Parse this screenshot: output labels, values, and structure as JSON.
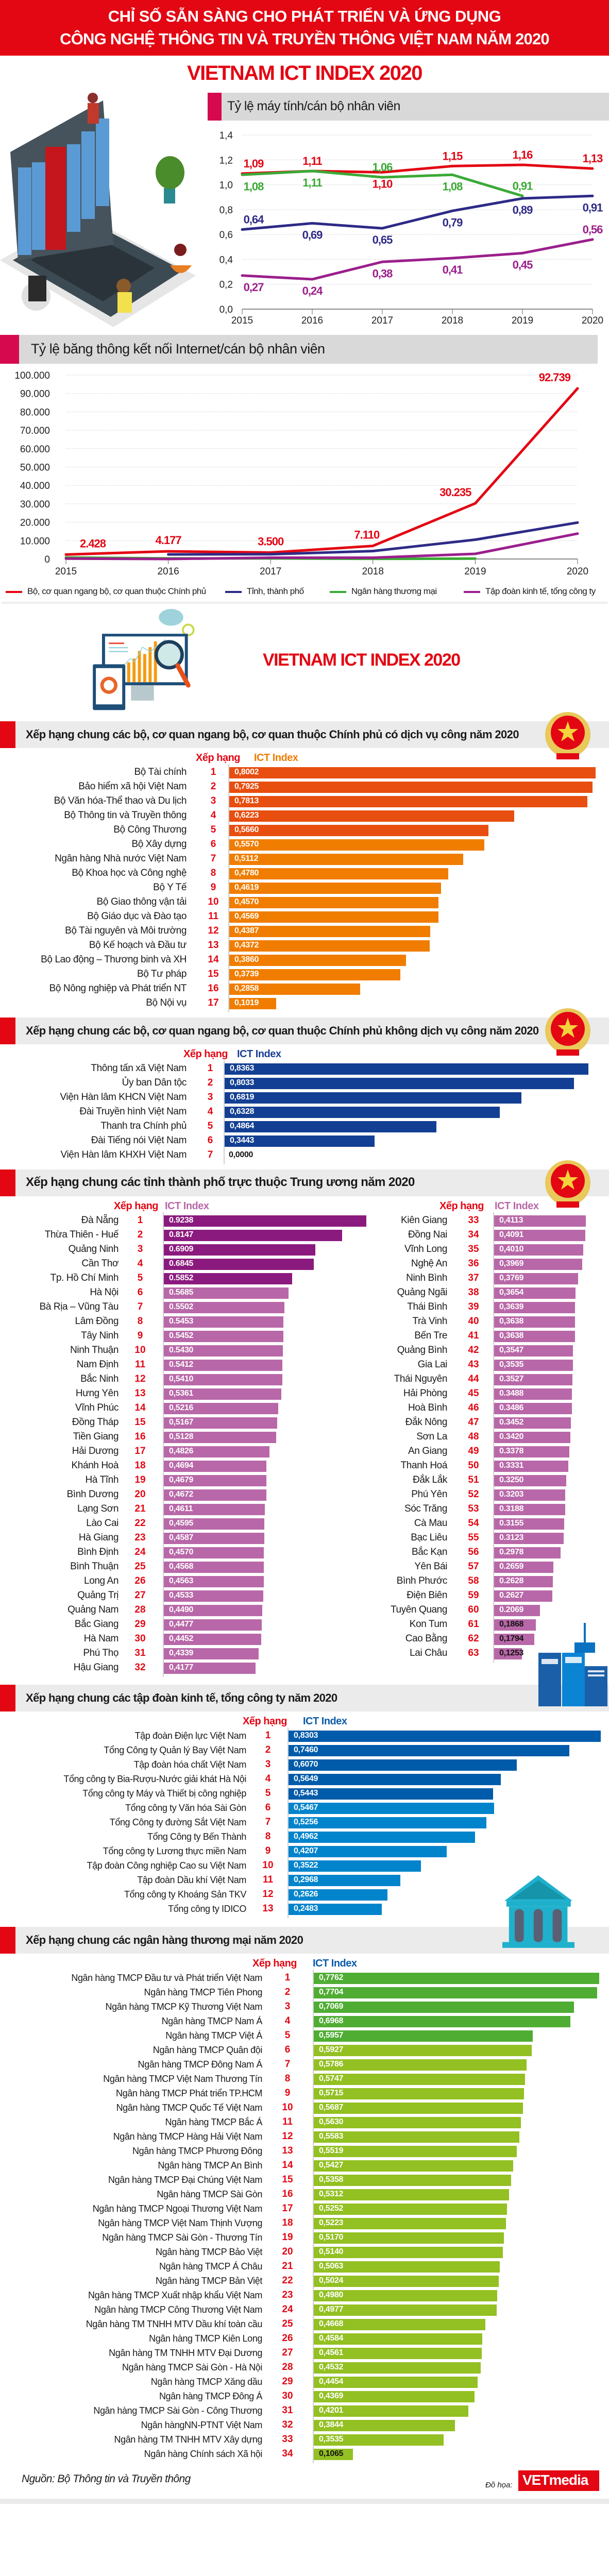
{
  "header": {
    "title_line1": "CHỈ SỐ SẴN SÀNG CHO PHÁT TRIỂN VÀ ỨNG DỤNG",
    "title_line2": "CÔNG NGHỆ THÔNG TIN VÀ TRUYỀN THÔNG VIỆT NAM NĂM 2020",
    "subtitle": "VIETNAM ICT INDEX 2020",
    "subtitle2": "VIETNAM ICT INDEX 2020"
  },
  "colors": {
    "brand_red": "#e30613",
    "ministries": "#e30613",
    "provinces": "#2e2a86",
    "banks": "#3aaa35",
    "corporations": "#9b1f8c"
  },
  "legend": [
    {
      "label": "Bộ, cơ quan ngang bộ, cơ quan thuộc Chính phủ",
      "color": "#e30613"
    },
    {
      "label": "Tỉnh, thành phố",
      "color": "#2e2a86"
    },
    {
      "label": "Ngân hàng thương mại",
      "color": "#3aaa35"
    },
    {
      "label": "Tập đoàn kinh tế, tổng công ty",
      "color": "#9b1f8c"
    }
  ],
  "chart_data": [
    {
      "type": "line",
      "title": "Tỷ lệ máy tính/cán bộ nhân viên",
      "x": [
        "2015",
        "2016",
        "2017",
        "2018",
        "2019",
        "2020"
      ],
      "ylim": [
        0,
        1.4
      ],
      "yticks": [
        "0,0",
        "0,2",
        "0,4",
        "0,6",
        "0,8",
        "1,0",
        "1,2",
        "1,4"
      ],
      "grid": true,
      "series": [
        {
          "color": "#e30613",
          "values": [
            1.09,
            1.11,
            1.1,
            1.15,
            1.16,
            1.13
          ],
          "labels": [
            "1,09",
            "1,11",
            "1,10",
            "1,15",
            "1,16",
            "1,13"
          ]
        },
        {
          "color": "#3aaa35",
          "values": [
            1.08,
            1.11,
            1.06,
            1.08,
            0.91,
            null
          ],
          "labels": [
            "1,08",
            "1,11",
            "1,06",
            "1,08",
            "0,91",
            ""
          ]
        },
        {
          "color": "#2e2a86",
          "values": [
            0.64,
            0.69,
            0.65,
            0.79,
            0.89,
            0.91
          ],
          "labels": [
            "0,64",
            "0,69",
            "0,65",
            "0,79",
            "0,89",
            "0,91"
          ]
        },
        {
          "color": "#9b1f8c",
          "values": [
            0.27,
            0.24,
            0.38,
            0.41,
            0.45,
            0.56
          ],
          "labels": [
            "0,27",
            "0,24",
            "0,38",
            "0,41",
            "0,45",
            "0,56"
          ]
        }
      ]
    },
    {
      "type": "line",
      "title": "Tỷ lệ băng thông kết nối Internet/cán bộ nhân viên",
      "x": [
        "2015",
        "2016",
        "2017",
        "2018",
        "2019",
        "2020"
      ],
      "ylim": [
        0,
        100000
      ],
      "yticks": [
        "0",
        "10.000",
        "20.000",
        "30.000",
        "40.000",
        "50.000",
        "60.000",
        "70.000",
        "80.000",
        "90.000",
        "100.000"
      ],
      "grid": true,
      "legend": "bottom",
      "series": [
        {
          "name": "Bộ, cơ quan ngang bộ, cơ quan thuộc Chính phủ",
          "color": "#e30613",
          "values": [
            2428,
            4177,
            3500,
            7110,
            30235,
            92739
          ],
          "labels": [
            "2.428",
            "4.177",
            "3.500",
            "7.110",
            "30.235",
            "92.739"
          ]
        },
        {
          "name": "Tỉnh, thành phố",
          "color": "#2e2a86",
          "values": [
            null,
            2500,
            2600,
            4300,
            10500,
            19800
          ]
        },
        {
          "name": "Ngân hàng thương mại",
          "color": "#3aaa35",
          "values": [
            800,
            300,
            300,
            100,
            200,
            null
          ]
        },
        {
          "name": "Tập đoàn kinh tế, tổng công ty",
          "color": "#9b1f8c",
          "values": [
            200,
            0,
            700,
            700,
            2800,
            13800
          ]
        }
      ]
    }
  ],
  "ministries_public": {
    "title": "Xếp hạng chung các bộ, cơ quan ngang bộ, cơ quan thuộc Chính phủ có dịch vụ công năm 2020",
    "col_rank": "Xếp hạng",
    "col_index": "ICT Index",
    "rows": [
      {
        "name": "Bộ Tài chính",
        "rank": "1",
        "value": "0,8002"
      },
      {
        "name": "Bảo hiểm xã hội Việt Nam",
        "rank": "2",
        "value": "0,7925"
      },
      {
        "name": "Bộ Văn hóa-Thể thao và Du lịch",
        "rank": "3",
        "value": "0,7813"
      },
      {
        "name": "Bộ Thông tin và Truyền thông",
        "rank": "4",
        "value": "0,6223"
      },
      {
        "name": "Bộ Công Thương",
        "rank": "5",
        "value": "0,5660"
      },
      {
        "name": "Bộ Xây dựng",
        "rank": "6",
        "value": "0,5570"
      },
      {
        "name": "Ngân hàng Nhà nước Việt Nam",
        "rank": "7",
        "value": "0,5112"
      },
      {
        "name": "Bộ Khoa học và Công nghệ",
        "rank": "8",
        "value": "0,4780"
      },
      {
        "name": "Bộ Y Tế",
        "rank": "9",
        "value": "0,4619"
      },
      {
        "name": "Bộ Giao thông vận tải",
        "rank": "10",
        "value": "0,4570"
      },
      {
        "name": "Bộ Giáo dục và Đào tạo",
        "rank": "11",
        "value": "0,4569"
      },
      {
        "name": "Bộ Tài nguyên và Môi trường",
        "rank": "12",
        "value": "0,4387"
      },
      {
        "name": "Bộ Kế hoạch và Đầu tư",
        "rank": "13",
        "value": "0,4372"
      },
      {
        "name": "Bộ Lao động – Thương binh và XH",
        "rank": "14",
        "value": "0,3860"
      },
      {
        "name": "Bộ Tư pháp",
        "rank": "15",
        "value": "0,3739"
      },
      {
        "name": "Bộ Nông nghiệp và Phát triển NT",
        "rank": "16",
        "value": "0,2858"
      },
      {
        "name": "Bộ Nội vụ",
        "rank": "17",
        "value": "0,1019"
      }
    ]
  },
  "ministries_nonpublic": {
    "title": "Xếp hạng chung các bộ, cơ quan ngang bộ, cơ quan thuộc Chính phủ không dịch vụ công năm 2020",
    "col_rank": "Xếp hạng",
    "col_index": "ICT Index",
    "rows": [
      {
        "name": "Thông tấn xã Việt Nam",
        "rank": "1",
        "value": "0,8363"
      },
      {
        "name": "Ủy ban Dân tộc",
        "rank": "2",
        "value": "0,8033"
      },
      {
        "name": "Viện Hàn lâm KHCN Việt Nam",
        "rank": "3",
        "value": "0,6819"
      },
      {
        "name": "Đài Truyền hình Việt Nam",
        "rank": "4",
        "value": "0,6328"
      },
      {
        "name": "Thanh tra Chính phủ",
        "rank": "5",
        "value": "0,4864"
      },
      {
        "name": "Đài Tiếng nói Việt Nam",
        "rank": "6",
        "value": "0,3443"
      },
      {
        "name": "Viện Hàn lâm KHXH Việt Nam",
        "rank": "7",
        "value": "0,0000"
      }
    ]
  },
  "provinces": {
    "title": "Xếp hạng chung các  tỉnh thành phố trực thuộc Trung ương năm 2020",
    "col_rank": "Xếp hạng",
    "col_index": "ICT Index",
    "rows": [
      {
        "name": "Đà Nẵng",
        "rank": "1",
        "value": "0.9238"
      },
      {
        "name": "Thừa Thiên - Huế",
        "rank": "2",
        "value": "0.8147"
      },
      {
        "name": "Quảng Ninh",
        "rank": "3",
        "value": "0.6909"
      },
      {
        "name": "Cần Thơ",
        "rank": "4",
        "value": "0.6845"
      },
      {
        "name": "Tp. Hồ Chí Minh",
        "rank": "5",
        "value": "0.5852"
      },
      {
        "name": "Hà Nội",
        "rank": "6",
        "value": "0.5685"
      },
      {
        "name": "Bà Rịa – Vũng Tàu",
        "rank": "7",
        "value": "0.5502"
      },
      {
        "name": "Lâm Đồng",
        "rank": "8",
        "value": "0.5453"
      },
      {
        "name": "Tây Ninh",
        "rank": "9",
        "value": "0.5452"
      },
      {
        "name": "Ninh Thuận",
        "rank": "10",
        "value": "0.5430"
      },
      {
        "name": "Nam Định",
        "rank": "11",
        "value": "0.5412"
      },
      {
        "name": "Bắc Ninh",
        "rank": "12",
        "value": "0,5410"
      },
      {
        "name": "Hưng Yên",
        "rank": "13",
        "value": "0,5361"
      },
      {
        "name": "Vĩnh Phúc",
        "rank": "14",
        "value": "0,5216"
      },
      {
        "name": "Đồng Tháp",
        "rank": "15",
        "value": "0,5167"
      },
      {
        "name": "Tiền Giang",
        "rank": "16",
        "value": "0,5128"
      },
      {
        "name": "Hải Dương",
        "rank": "17",
        "value": "0,4826"
      },
      {
        "name": "Khánh Hoà",
        "rank": "18",
        "value": "0,4694"
      },
      {
        "name": "Hà Tĩnh",
        "rank": "19",
        "value": "0,4679"
      },
      {
        "name": "Bình Dương",
        "rank": "20",
        "value": "0,4672"
      },
      {
        "name": "Lạng Sơn",
        "rank": "21",
        "value": "0,4611"
      },
      {
        "name": "Lào Cai",
        "rank": "22",
        "value": "0,4595"
      },
      {
        "name": "Hà Giang",
        "rank": "23",
        "value": "0,4587"
      },
      {
        "name": "Bình Định",
        "rank": "24",
        "value": "0,4570"
      },
      {
        "name": "Bình Thuận",
        "rank": "25",
        "value": "0,4568"
      },
      {
        "name": "Long An",
        "rank": "26",
        "value": "0,4563"
      },
      {
        "name": "Quảng Trị",
        "rank": "27",
        "value": "0,4533"
      },
      {
        "name": "Quảng Nam",
        "rank": "28",
        "value": "0,4490"
      },
      {
        "name": "Bắc Giang",
        "rank": "29",
        "value": "0,4477"
      },
      {
        "name": "Hà Nam",
        "rank": "30",
        "value": "0,4452"
      },
      {
        "name": "Phú Thọ",
        "rank": "31",
        "value": "0,4339"
      },
      {
        "name": "Hậu Giang",
        "rank": "32",
        "value": "0,4177"
      },
      {
        "name": "Kiên Giang",
        "rank": "33",
        "value": "0,4113"
      },
      {
        "name": "Đồng Nai",
        "rank": "34",
        "value": "0,4091"
      },
      {
        "name": "Vĩnh Long",
        "rank": "35",
        "value": "0,4010"
      },
      {
        "name": "Nghệ An",
        "rank": "36",
        "value": "0,3969"
      },
      {
        "name": "Ninh Bình",
        "rank": "37",
        "value": "0,3769"
      },
      {
        "name": "Quảng Ngãi",
        "rank": "38",
        "value": "0,3654"
      },
      {
        "name": "Thái Bình",
        "rank": "39",
        "value": "0,3639"
      },
      {
        "name": "Trà Vinh",
        "rank": "40",
        "value": "0,3638"
      },
      {
        "name": "Bến Tre",
        "rank": "41",
        "value": "0,3638"
      },
      {
        "name": "Quảng Bình",
        "rank": "42",
        "value": "0,3547"
      },
      {
        "name": "Gia Lai",
        "rank": "43",
        "value": "0,3535"
      },
      {
        "name": "Thái Nguyên",
        "rank": "44",
        "value": "0.3527"
      },
      {
        "name": "Hải Phòng",
        "rank": "45",
        "value": "0.3488"
      },
      {
        "name": "Hoà Bình",
        "rank": "46",
        "value": "0.3486"
      },
      {
        "name": "Đắk Nông",
        "rank": "47",
        "value": "0.3452"
      },
      {
        "name": "Sơn La",
        "rank": "48",
        "value": "0.3420"
      },
      {
        "name": "An Giang",
        "rank": "49",
        "value": "0.3378"
      },
      {
        "name": "Thanh Hoá",
        "rank": "50",
        "value": "0.3331"
      },
      {
        "name": "Đắk Lắk",
        "rank": "51",
        "value": "0.3250"
      },
      {
        "name": "Phú Yên",
        "rank": "52",
        "value": "0.3203"
      },
      {
        "name": "Sóc Trăng",
        "rank": "53",
        "value": "0.3188"
      },
      {
        "name": "Cà Mau",
        "rank": "54",
        "value": "0.3155"
      },
      {
        "name": "Bạc Liêu",
        "rank": "55",
        "value": "0.3123"
      },
      {
        "name": "Bắc Kạn",
        "rank": "56",
        "value": "0.2978"
      },
      {
        "name": "Yên Bái",
        "rank": "57",
        "value": "0.2659"
      },
      {
        "name": "Bình Phước",
        "rank": "58",
        "value": "0.2628"
      },
      {
        "name": "Điện Biên",
        "rank": "59",
        "value": "0.2627"
      },
      {
        "name": "Tuyên Quang",
        "rank": "60",
        "value": "0.2069"
      },
      {
        "name": "Kon Tum",
        "rank": "61",
        "value": "0,1868"
      },
      {
        "name": "Cao Bằng",
        "rank": "62",
        "value": "0,1794"
      },
      {
        "name": "Lai Châu",
        "rank": "63",
        "value": "0,1253"
      }
    ]
  },
  "corporations": {
    "title": "Xếp hạng chung các  tập đoàn kinh tế, tổng công ty năm 2020",
    "col_rank": "Xếp hạng",
    "col_index": "ICT Index",
    "rows": [
      {
        "name": "Tập đoàn Điện lực Việt Nam",
        "rank": "1",
        "value": "0,8303"
      },
      {
        "name": "Tổng Công ty Quản lý Bay Việt Nam",
        "rank": "2",
        "value": "0,7460"
      },
      {
        "name": "Tập đoàn hóa chất Việt Nam",
        "rank": "3",
        "value": "0,6070"
      },
      {
        "name": "Tổng công ty Bia-Rượu-Nước giải khát Hà Nội",
        "rank": "4",
        "value": "0,5649"
      },
      {
        "name": "Tổng công ty Máy và Thiết bị công nghiệp",
        "rank": "5",
        "value": "0,5443"
      },
      {
        "name": "Tổng công ty Văn hóa Sài Gòn",
        "rank": "6",
        "value": "0,5467"
      },
      {
        "name": "Tổng Công ty đường Sắt Việt Nam",
        "rank": "7",
        "value": "0,5256"
      },
      {
        "name": "Tổng Công ty Bến Thành",
        "rank": "8",
        "value": "0,4962"
      },
      {
        "name": "Tổng công ty Lương thực miền Nam",
        "rank": "9",
        "value": "0,4207"
      },
      {
        "name": "Tập đoàn Công nghiệp Cao su Việt Nam",
        "rank": "10",
        "value": "0,3522"
      },
      {
        "name": "Tập đoàn Dầu khí Việt Nam",
        "rank": "11",
        "value": "0,2968"
      },
      {
        "name": "Tổng công ty Khoáng Sản TKV",
        "rank": "12",
        "value": "0,2626"
      },
      {
        "name": "Tổng công ty IDICO",
        "rank": "13",
        "value": "0,2483"
      }
    ]
  },
  "banks": {
    "title": "Xếp hạng chung các ngân hàng thương mại năm 2020",
    "col_rank": "Xếp hạng",
    "col_index": "ICT Index",
    "rows": [
      {
        "name": "Ngân hàng TMCP Đầu tư và Phát triển Việt Nam",
        "rank": "1",
        "value": "0,7762"
      },
      {
        "name": "Ngân hàng TMCP Tiên Phong",
        "rank": "2",
        "value": "0,7704"
      },
      {
        "name": "Ngân hàng TMCP Kỹ Thương Việt Nam",
        "rank": "3",
        "value": "0,7069"
      },
      {
        "name": "Ngân hàng TMCP Nam Á",
        "rank": "4",
        "value": "0,6968"
      },
      {
        "name": "Ngân hàng TMCP Việt Á",
        "rank": "5",
        "value": "0,5957"
      },
      {
        "name": "Ngân hàng TMCP Quân đội",
        "rank": "6",
        "value": "0,5927"
      },
      {
        "name": "Ngân hàng TMCP Đông Nam Á",
        "rank": "7",
        "value": "0,5786"
      },
      {
        "name": "Ngân hàng TMCP Việt Nam Thương Tín",
        "rank": "8",
        "value": "0,5747"
      },
      {
        "name": "Ngân hàng TMCP Phát triển TP.HCM",
        "rank": "9",
        "value": "0,5715"
      },
      {
        "name": "Ngân hàng TMCP Quốc Tế Việt Nam",
        "rank": "10",
        "value": "0,5687"
      },
      {
        "name": "Ngân hàng TMCP Bắc Á",
        "rank": "11",
        "value": "0,5630"
      },
      {
        "name": "Ngân hàng TMCP Hàng Hải Việt Nam",
        "rank": "12",
        "value": "0,5583"
      },
      {
        "name": "Ngân hàng TMCP Phương Đông",
        "rank": "13",
        "value": "0,5519"
      },
      {
        "name": "Ngân hàng TMCP An Bình",
        "rank": "14",
        "value": "0,5427"
      },
      {
        "name": "Ngân hàng TMCP Đại Chúng Việt Nam",
        "rank": "15",
        "value": "0,5358"
      },
      {
        "name": "Ngân hàng TMCP Sài Gòn",
        "rank": "16",
        "value": "0,5312"
      },
      {
        "name": "Ngân hàng TMCP Ngoại Thương Việt Nam",
        "rank": "17",
        "value": "0,5252"
      },
      {
        "name": "Ngân hàng TMCP Việt Nam Thịnh Vượng",
        "rank": "18",
        "value": "0,5223"
      },
      {
        "name": "Ngân hàng TMCP Sài Gòn - Thương Tín",
        "rank": "19",
        "value": "0,5170"
      },
      {
        "name": "Ngân hàng TMCP Bảo Việt",
        "rank": "20",
        "value": "0,5140"
      },
      {
        "name": "Ngân hàng TMCP Á Châu",
        "rank": "21",
        "value": "0,5063"
      },
      {
        "name": "Ngân hàng TMCP Bản Việt",
        "rank": "22",
        "value": "0,5024"
      },
      {
        "name": "Ngân hàng TMCP Xuất nhập khẩu Việt Nam",
        "rank": "23",
        "value": "0,4980"
      },
      {
        "name": "Ngân hàng TMCP Công Thương Việt Nam",
        "rank": "24",
        "value": "0,4977"
      },
      {
        "name": "Ngân hàng TM TNHH MTV Dầu khí toàn cầu",
        "rank": "25",
        "value": "0,4668"
      },
      {
        "name": "Ngân hàng TMCP Kiên Long",
        "rank": "26",
        "value": "0,4584"
      },
      {
        "name": "Ngân hàng TM TNHH MTV Đại Dương",
        "rank": "27",
        "value": "0,4561"
      },
      {
        "name": "Ngân hàng TMCP Sài Gòn - Hà Nội",
        "rank": "28",
        "value": "0,4532"
      },
      {
        "name": "Ngân hàng TMCP Xăng dầu",
        "rank": "29",
        "value": "0,4454"
      },
      {
        "name": "Ngân hàng TMCP Đông Á",
        "rank": "30",
        "value": "0,4369"
      },
      {
        "name": "Ngân hàng TMCP Sài Gòn - Công Thương",
        "rank": "31",
        "value": "0,4201"
      },
      {
        "name": "Ngân hàngNN-PTNT Việt Nam",
        "rank": "32",
        "value": "0,3844"
      },
      {
        "name": "Ngân hàng TM TNHH MTV Xây dựng",
        "rank": "33",
        "value": "0,3535"
      },
      {
        "name": "Ngân hàng Chính sách Xã hội",
        "rank": "34",
        "value": "0,1065"
      }
    ]
  },
  "footer": {
    "source": "Nguồn: Bộ Thông tin và Truyền thông",
    "credit_label": "Đồ họa:",
    "logo_text": "VETmedia"
  }
}
